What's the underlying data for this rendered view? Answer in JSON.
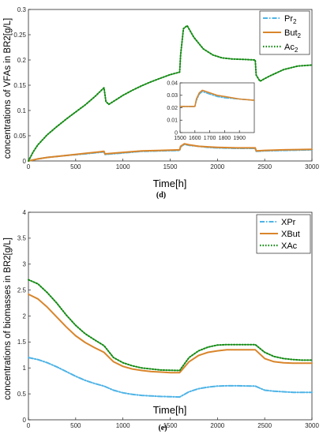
{
  "chart_data": [
    {
      "type": "line",
      "panel_label": "(d)",
      "xlabel": "Time[h]",
      "ylabel": "concentrations of VFAs in BR2[g/L]",
      "xlim": [
        0,
        3000
      ],
      "ylim": [
        0,
        0.3
      ],
      "xticks": [
        "0",
        "500",
        "1000",
        "1500",
        "2000",
        "2500",
        "3000"
      ],
      "yticks": [
        "0",
        "0.05",
        "0.1",
        "0.15",
        "0.2",
        "0.25",
        "0.3"
      ],
      "grid": false,
      "legend_position": "top-right",
      "series": [
        {
          "name": "Pr",
          "name_sub": "2",
          "color": "#4db3e6",
          "dash": "dash-dot",
          "x": [
            0,
            100,
            200,
            400,
            600,
            800,
            810,
            1000,
            1200,
            1400,
            1600,
            1610,
            1650,
            1700,
            1800,
            1900,
            2000,
            2200,
            2400,
            2410,
            2500,
            2700,
            3000
          ],
          "y": [
            0,
            0.004,
            0.007,
            0.011,
            0.014,
            0.018,
            0.013,
            0.016,
            0.019,
            0.02,
            0.021,
            0.028,
            0.033,
            0.031,
            0.029,
            0.027,
            0.026,
            0.025,
            0.025,
            0.019,
            0.02,
            0.021,
            0.022
          ]
        },
        {
          "name": "But",
          "name_sub": "2",
          "color": "#d9852b",
          "dash": "solid",
          "x": [
            0,
            100,
            200,
            400,
            600,
            800,
            810,
            1000,
            1200,
            1400,
            1600,
            1610,
            1650,
            1700,
            1800,
            1900,
            2000,
            2200,
            2400,
            2410,
            2500,
            2700,
            3000
          ],
          "y": [
            0,
            0.004,
            0.007,
            0.011,
            0.015,
            0.019,
            0.014,
            0.017,
            0.02,
            0.021,
            0.022,
            0.029,
            0.034,
            0.032,
            0.029,
            0.028,
            0.027,
            0.026,
            0.026,
            0.02,
            0.021,
            0.022,
            0.023
          ]
        },
        {
          "name": "Ac",
          "name_sub": "2",
          "color": "#138a13",
          "dash": "dotted",
          "x": [
            0,
            50,
            100,
            200,
            300,
            400,
            500,
            600,
            700,
            800,
            820,
            850,
            900,
            1000,
            1100,
            1200,
            1300,
            1400,
            1500,
            1600,
            1610,
            1640,
            1680,
            1750,
            1850,
            1950,
            2050,
            2150,
            2300,
            2400,
            2410,
            2450,
            2550,
            2700,
            2850,
            3000
          ],
          "y": [
            0,
            0.018,
            0.032,
            0.052,
            0.068,
            0.083,
            0.097,
            0.111,
            0.127,
            0.145,
            0.118,
            0.112,
            0.118,
            0.13,
            0.14,
            0.149,
            0.157,
            0.164,
            0.171,
            0.176,
            0.21,
            0.262,
            0.268,
            0.245,
            0.222,
            0.21,
            0.204,
            0.202,
            0.201,
            0.2,
            0.17,
            0.158,
            0.168,
            0.181,
            0.188,
            0.19
          ]
        }
      ],
      "inset": {
        "xlim": [
          1500,
          2000
        ],
        "ylim": [
          0,
          0.04
        ],
        "xticks": [
          "1500",
          "1600",
          "1700",
          "1800",
          "1900"
        ],
        "yticks": [
          "0",
          "0.01",
          "0.02",
          "0.03",
          "0.04"
        ],
        "series": [
          {
            "name": "Pr",
            "color": "#4db3e6",
            "dash": "dash-dot",
            "x": [
              1500,
              1580,
              1600,
              1610,
              1630,
              1650,
              1700,
              1750,
              1800,
              1900,
              2000
            ],
            "y": [
              0.021,
              0.021,
              0.021,
              0.026,
              0.031,
              0.033,
              0.031,
              0.029,
              0.028,
              0.027,
              0.026
            ]
          },
          {
            "name": "But",
            "color": "#d9852b",
            "dash": "solid",
            "x": [
              1500,
              1580,
              1600,
              1610,
              1630,
              1650,
              1700,
              1750,
              1800,
              1900,
              2000
            ],
            "y": [
              0.021,
              0.021,
              0.021,
              0.027,
              0.032,
              0.034,
              0.032,
              0.03,
              0.029,
              0.027,
              0.026
            ]
          }
        ]
      }
    },
    {
      "type": "line",
      "panel_label": "(e)",
      "xlabel": "Time[h]",
      "ylabel": "concentrations of biomasses in BR2[g/L]",
      "xlim": [
        0,
        3000
      ],
      "ylim": [
        0,
        4
      ],
      "xticks": [
        "0",
        "500",
        "1000",
        "1500",
        "2000",
        "2500",
        "3000"
      ],
      "yticks": [
        "0",
        "0.5",
        "1",
        "1.5",
        "2",
        "2.5",
        "3",
        "3.5",
        "4"
      ],
      "grid": false,
      "legend_position": "top-right",
      "series": [
        {
          "name": "XPr",
          "color": "#4db3e6",
          "dash": "dash-dot",
          "x": [
            0,
            100,
            200,
            300,
            400,
            500,
            600,
            700,
            800,
            900,
            1000,
            1100,
            1200,
            1300,
            1400,
            1500,
            1600,
            1700,
            1800,
            1900,
            2000,
            2100,
            2200,
            2300,
            2400,
            2500,
            2600,
            2700,
            2800,
            2900,
            3000
          ],
          "y": [
            1.2,
            1.16,
            1.1,
            1.02,
            0.93,
            0.84,
            0.76,
            0.7,
            0.65,
            0.57,
            0.52,
            0.49,
            0.47,
            0.46,
            0.45,
            0.445,
            0.44,
            0.54,
            0.6,
            0.63,
            0.65,
            0.655,
            0.655,
            0.652,
            0.65,
            0.57,
            0.55,
            0.54,
            0.53,
            0.53,
            0.53
          ]
        },
        {
          "name": "XBut",
          "color": "#d9852b",
          "dash": "solid",
          "x": [
            0,
            100,
            200,
            300,
            400,
            500,
            600,
            700,
            800,
            900,
            1000,
            1100,
            1200,
            1300,
            1400,
            1500,
            1600,
            1700,
            1800,
            1900,
            2000,
            2100,
            2200,
            2300,
            2400,
            2500,
            2600,
            2700,
            2800,
            2900,
            3000
          ],
          "y": [
            2.42,
            2.33,
            2.17,
            1.98,
            1.79,
            1.62,
            1.49,
            1.39,
            1.3,
            1.12,
            1.03,
            0.98,
            0.95,
            0.93,
            0.92,
            0.91,
            0.91,
            1.12,
            1.24,
            1.3,
            1.33,
            1.35,
            1.35,
            1.35,
            1.35,
            1.18,
            1.12,
            1.1,
            1.09,
            1.09,
            1.09
          ]
        },
        {
          "name": "XAc",
          "color": "#138a13",
          "dash": "dotted",
          "x": [
            0,
            100,
            200,
            300,
            400,
            500,
            600,
            700,
            800,
            900,
            1000,
            1100,
            1200,
            1300,
            1400,
            1500,
            1600,
            1700,
            1800,
            1900,
            2000,
            2100,
            2200,
            2300,
            2400,
            2500,
            2600,
            2700,
            2800,
            2900,
            3000
          ],
          "y": [
            2.7,
            2.62,
            2.45,
            2.25,
            2.02,
            1.82,
            1.66,
            1.54,
            1.43,
            1.2,
            1.1,
            1.04,
            1.0,
            0.98,
            0.96,
            0.955,
            0.95,
            1.2,
            1.33,
            1.4,
            1.44,
            1.45,
            1.45,
            1.45,
            1.45,
            1.3,
            1.22,
            1.18,
            1.16,
            1.15,
            1.15
          ]
        }
      ]
    }
  ]
}
